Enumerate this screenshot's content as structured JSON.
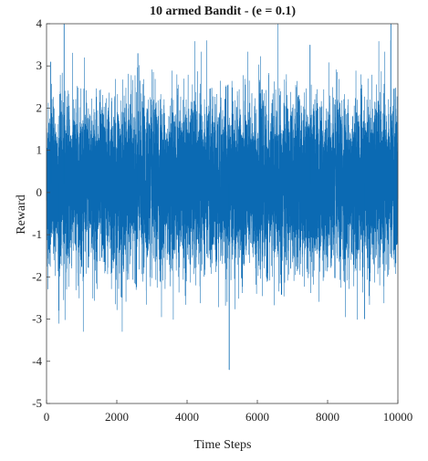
{
  "chart_data": {
    "type": "line",
    "title": "10 armed Bandit - (e = 0.1)",
    "xlabel": "Time Steps",
    "ylabel": "Reward",
    "xlim": [
      0,
      10000
    ],
    "ylim": [
      -5,
      4
    ],
    "xticks": [
      "0",
      "2000",
      "4000",
      "6000",
      "8000",
      "10000"
    ],
    "yticks": [
      "4",
      "3",
      "2",
      "1",
      "0",
      "-1",
      "-2",
      "-3",
      "-4",
      "-5"
    ],
    "n_points": 10000,
    "series_color": "#0b6ab3",
    "noise": {
      "mean": 0.2,
      "typical_range": [
        -1.5,
        2.0
      ],
      "max_observed": 4.0,
      "min_observed": -4.2,
      "min_observed_at_x": 5200
    },
    "grid": false,
    "box": true
  }
}
